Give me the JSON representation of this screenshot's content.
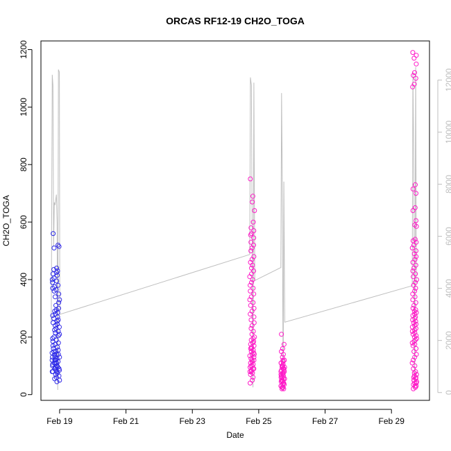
{
  "chart_data": {
    "type": "scatter",
    "title": "ORCAS RF12-19 CH2O_TOGA",
    "xlabel": "Date",
    "ylabel": "CH2O_TOGA",
    "x_axis": {
      "kind": "date",
      "range": [
        "2016-02-18T10:30",
        "2016-03-01T03:30"
      ],
      "ticks": [
        {
          "date": "2016-02-19",
          "label": "Feb 19"
        },
        {
          "date": "2016-02-21",
          "label": "Feb 21"
        },
        {
          "date": "2016-02-23",
          "label": "Feb 23"
        },
        {
          "date": "2016-02-25",
          "label": "Feb 25"
        },
        {
          "date": "2016-02-27",
          "label": "Feb 27"
        },
        {
          "date": "2016-02-29",
          "label": "Feb 29"
        }
      ]
    },
    "y_axis_left": {
      "range": [
        -20,
        1230
      ],
      "ticks": [
        0,
        200,
        400,
        600,
        800,
        1000,
        1200
      ],
      "labels": [
        "0",
        "200",
        "400",
        "600",
        "800",
        "1000",
        "1200"
      ]
    },
    "y_axis_right": {
      "range": [
        -300,
        13500
      ],
      "ticks": [
        0,
        2000,
        4000,
        6000,
        8000,
        10000,
        12000
      ],
      "labels": [
        "0",
        "2000",
        "4000",
        "6000",
        "8000",
        "10000",
        "12000"
      ],
      "color": "#bebebe"
    },
    "grid": false,
    "legend": "none",
    "series": [
      {
        "kind": "line",
        "axis": "right",
        "color": "#bebebe",
        "points": [
          [
            "2016-02-18T18:00",
            2700
          ],
          [
            "2016-02-18T18:40",
            12200
          ],
          [
            "2016-02-18T19:10",
            11800
          ],
          [
            "2016-02-18T19:40",
            5600
          ],
          [
            "2016-02-18T20:10",
            7300
          ],
          [
            "2016-02-18T20:40",
            7200
          ],
          [
            "2016-02-18T21:10",
            7400
          ],
          [
            "2016-02-18T21:40",
            7600
          ],
          [
            "2016-02-18T22:10",
            6500
          ],
          [
            "2016-02-18T22:40",
            100
          ],
          [
            "2016-02-18T23:10",
            12400
          ],
          [
            "2016-02-18T23:50",
            12300
          ],
          [
            "2016-02-19T00:10",
            3000
          ],
          [
            "2016-02-24T17:30",
            5300
          ],
          [
            "2016-02-24T18:00",
            12100
          ],
          [
            "2016-02-24T18:40",
            11800
          ],
          [
            "2016-02-24T19:20",
            5000
          ],
          [
            "2016-02-24T19:50",
            200
          ],
          [
            "2016-02-24T20:30",
            11900
          ],
          [
            "2016-02-24T21:10",
            4300
          ],
          [
            "2016-02-25T16:00",
            4800
          ],
          [
            "2016-02-25T16:30",
            11500
          ],
          [
            "2016-02-25T17:00",
            8200
          ],
          [
            "2016-02-25T17:40",
            100
          ],
          [
            "2016-02-25T18:10",
            8100
          ],
          [
            "2016-02-25T18:50",
            2700
          ],
          [
            "2016-02-29T15:00",
            4100
          ],
          [
            "2016-02-29T15:30",
            12300
          ],
          [
            "2016-02-29T16:10",
            8500
          ],
          [
            "2016-02-29T16:50",
            200
          ],
          [
            "2016-02-29T17:30",
            12500
          ],
          [
            "2016-02-29T18:00",
            4200
          ]
        ]
      },
      {
        "kind": "scatter",
        "axis": "left",
        "name": "",
        "marker": "open-circle",
        "color_gradient": [
          "#2a2ae8",
          "#ff1ac8"
        ],
        "clusters": [
          {
            "start": "2016-02-18T18:30",
            "end": "2016-02-19T00:00",
            "values": [
              560,
              520,
              510,
              515,
              440,
              435,
              430,
              425,
              420,
              415,
              405,
              400,
              395,
              390,
              380,
              375,
              370,
              365,
              360,
              350,
              340,
              330,
              320,
              310,
              300,
              295,
              290,
              285,
              280,
              275,
              270,
              265,
              260,
              255,
              250,
              245,
              240,
              235,
              230,
              225,
              220,
              215,
              210,
              205,
              200,
              195,
              190,
              185,
              180,
              175,
              170,
              165,
              160,
              155,
              150,
              145,
              140,
              135,
              130,
              125,
              120,
              115,
              110,
              105,
              100,
              95,
              90,
              85,
              80,
              75,
              70,
              65,
              60,
              55,
              50,
              45,
              150,
              140,
              130,
              120,
              110,
              100,
              95,
              90,
              85,
              80,
              140,
              130,
              120,
              110,
              100,
              90,
              80
            ]
          },
          {
            "start": "2016-02-24T17:30",
            "end": "2016-02-24T21:00",
            "values": [
              750,
              690,
              670,
              640,
              600,
              580,
              570,
              560,
              555,
              545,
              530,
              520,
              510,
              500,
              480,
              470,
              460,
              450,
              440,
              430,
              420,
              410,
              400,
              390,
              380,
              370,
              360,
              350,
              340,
              330,
              320,
              310,
              300,
              290,
              280,
              270,
              260,
              250,
              240,
              230,
              220,
              210,
              200,
              195,
              190,
              185,
              180,
              175,
              170,
              165,
              160,
              155,
              150,
              145,
              140,
              135,
              130,
              125,
              120,
              115,
              110,
              105,
              100,
              95,
              90,
              85,
              80,
              75,
              70,
              60,
              50,
              40,
              180,
              160,
              140,
              120,
              100,
              90,
              80
            ]
          },
          {
            "start": "2016-02-25T16:00",
            "end": "2016-02-25T18:50",
            "values": [
              210,
              175,
              160,
              150,
              140,
              130,
              120,
              115,
              110,
              105,
              100,
              95,
              90,
              85,
              80,
              75,
              70,
              65,
              60,
              55,
              50,
              45,
              40,
              35,
              30,
              25,
              20,
              20,
              25,
              30,
              40,
              50,
              60,
              70,
              80,
              90,
              100,
              110,
              120,
              95,
              85,
              75,
              65,
              55,
              45,
              35,
              25
            ]
          },
          {
            "start": "2016-02-29T15:00",
            "end": "2016-02-29T18:20",
            "values": [
              1190,
              1180,
              1170,
              1150,
              1120,
              1110,
              1100,
              1080,
              1070,
              730,
              715,
              700,
              650,
              640,
              605,
              590,
              585,
              540,
              535,
              530,
              520,
              510,
              500,
              490,
              480,
              470,
              460,
              450,
              440,
              430,
              420,
              410,
              400,
              390,
              380,
              370,
              360,
              350,
              340,
              330,
              320,
              310,
              300,
              295,
              290,
              285,
              280,
              275,
              270,
              265,
              260,
              255,
              250,
              245,
              240,
              235,
              230,
              225,
              220,
              215,
              210,
              205,
              200,
              195,
              190,
              185,
              180,
              175,
              170,
              160,
              150,
              140,
              130,
              120,
              110,
              100,
              90,
              80,
              75,
              70,
              65,
              60,
              55,
              50,
              45,
              40,
              35,
              30,
              25,
              20,
              60,
              50,
              40,
              30
            ]
          }
        ]
      }
    ]
  }
}
